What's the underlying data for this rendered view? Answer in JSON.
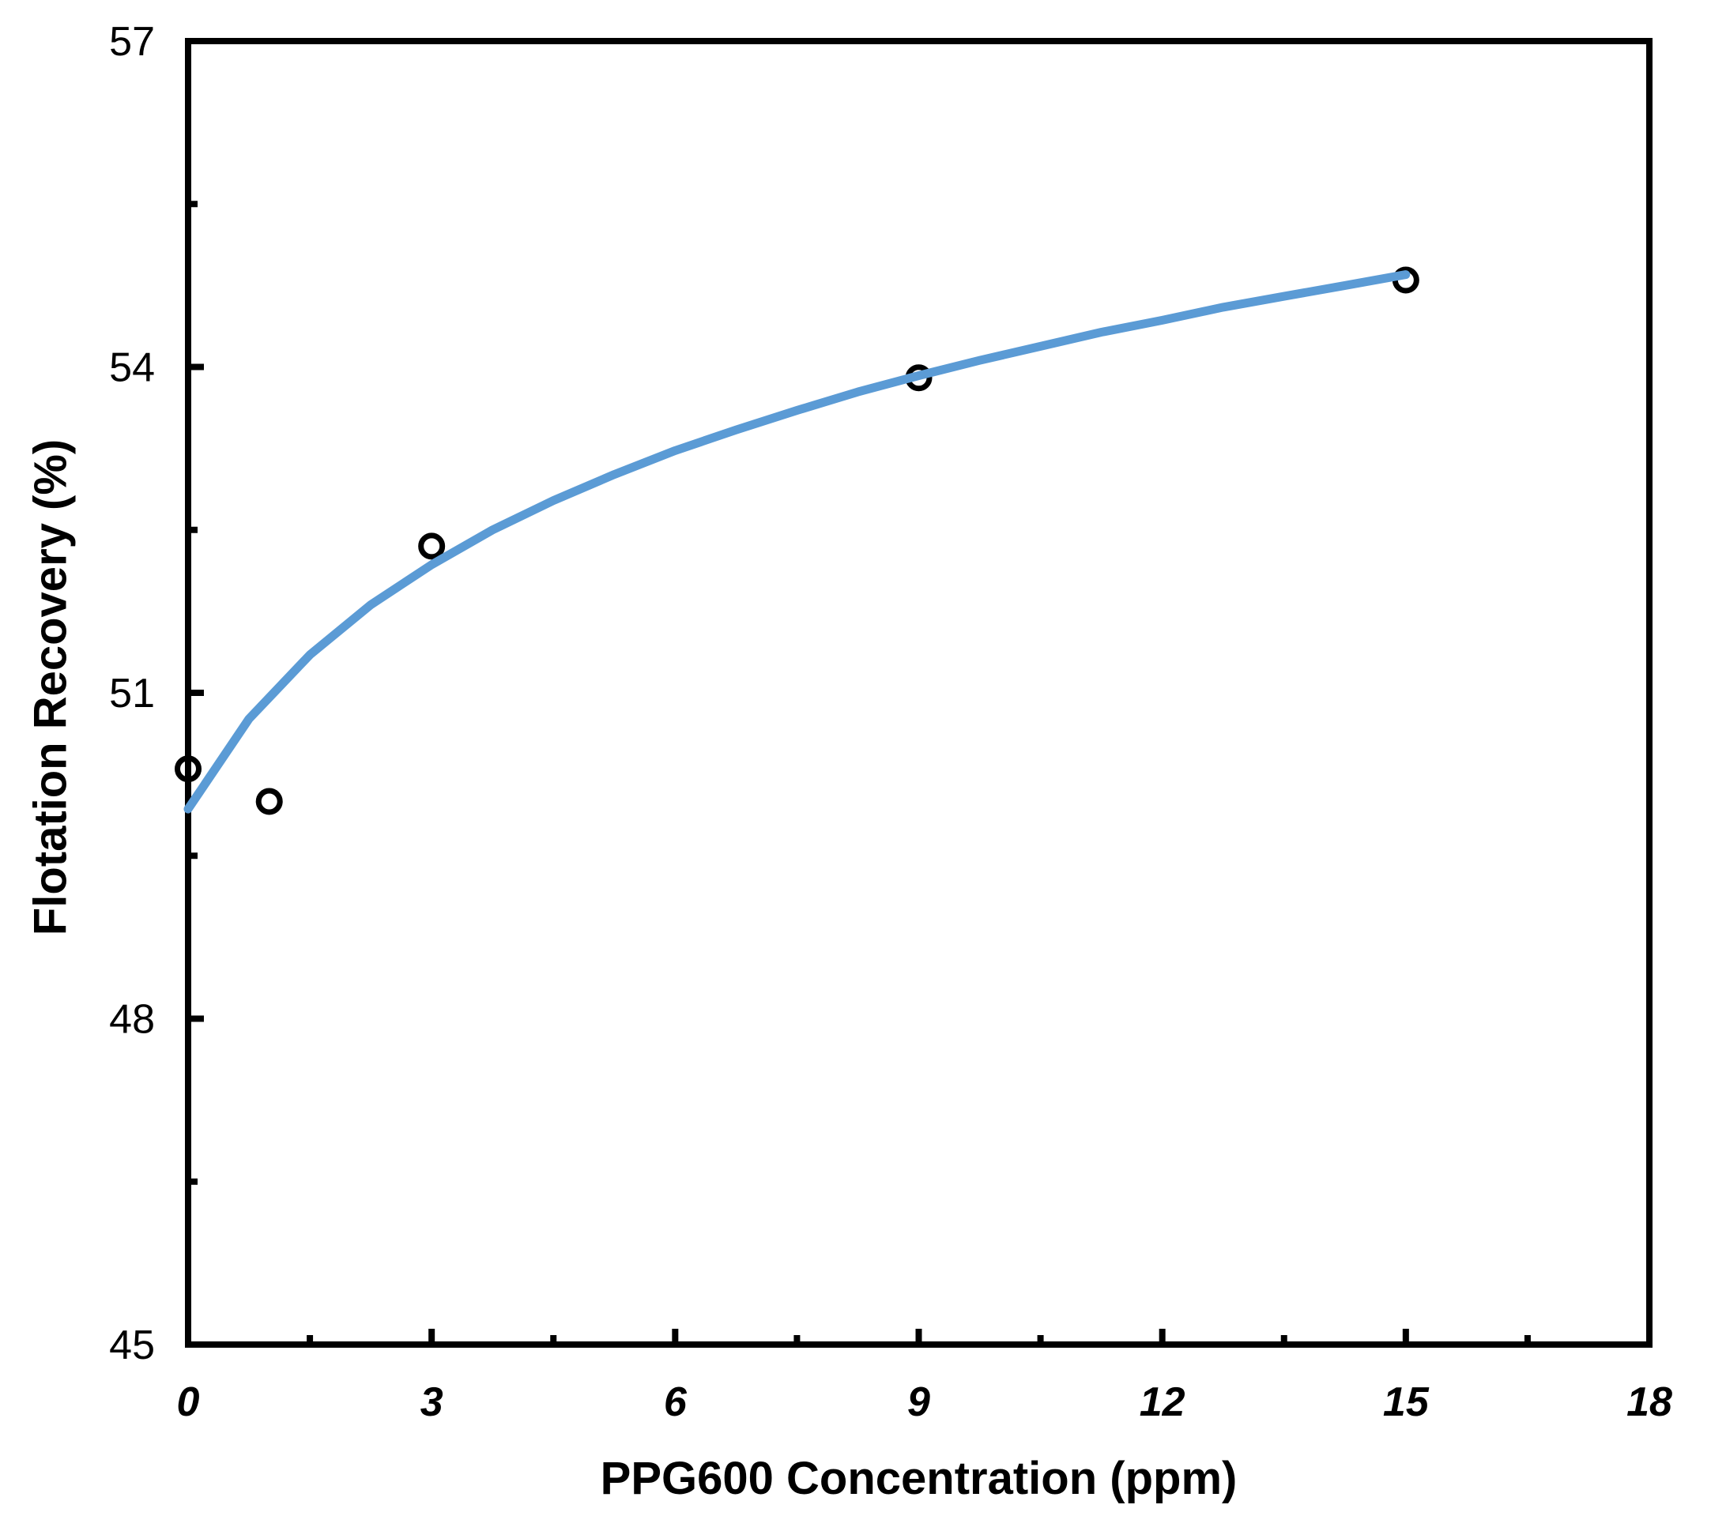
{
  "chart_data": {
    "type": "scatter",
    "title": "",
    "xlabel": "PPG600 Concentration (ppm)",
    "ylabel": "Flotation Recovery (%)",
    "xlim": [
      0,
      18
    ],
    "ylim": [
      45,
      57
    ],
    "x_major_ticks": [
      0,
      3,
      6,
      9,
      12,
      15,
      18
    ],
    "x_tick_labels": [
      "0",
      "3",
      "6",
      "9",
      "12",
      "15",
      "18"
    ],
    "x_minor_ticks": [
      1.5,
      4.5,
      7.5,
      10.5,
      13.5,
      16.5
    ],
    "y_major_ticks": [
      45,
      48,
      51,
      54,
      57
    ],
    "y_tick_labels": [
      "45",
      "48",
      "51",
      "54",
      "57"
    ],
    "y_minor_ticks": [
      46.5,
      49.5,
      52.5,
      55.5
    ],
    "grid": false,
    "legend": null,
    "background_color": "#FFFFFF",
    "axis_color": "#000000",
    "series": [
      {
        "name": "flotation-recovery-points",
        "kind": "scatter",
        "marker": "open-circle",
        "marker_color": "#000000",
        "points": [
          [
            0,
            50.3
          ],
          [
            1,
            50.0
          ],
          [
            3,
            52.35
          ],
          [
            9,
            53.9
          ],
          [
            15,
            54.8
          ]
        ]
      },
      {
        "name": "trendline",
        "kind": "line",
        "line_color": "#5B9BD5",
        "points": [
          [
            0,
            49.93
          ],
          [
            0.75,
            50.76
          ],
          [
            1.5,
            51.35
          ],
          [
            2.25,
            51.81
          ],
          [
            3,
            52.18
          ],
          [
            3.75,
            52.5
          ],
          [
            4.5,
            52.77
          ],
          [
            5.25,
            53.01
          ],
          [
            6,
            53.23
          ],
          [
            6.75,
            53.42
          ],
          [
            7.5,
            53.6
          ],
          [
            8.25,
            53.77
          ],
          [
            9,
            53.92
          ],
          [
            9.75,
            54.06
          ],
          [
            10.5,
            54.19
          ],
          [
            11.25,
            54.32
          ],
          [
            12,
            54.43
          ],
          [
            12.75,
            54.55
          ],
          [
            13.5,
            54.65
          ],
          [
            14.25,
            54.75
          ],
          [
            15,
            54.85
          ]
        ]
      }
    ]
  }
}
